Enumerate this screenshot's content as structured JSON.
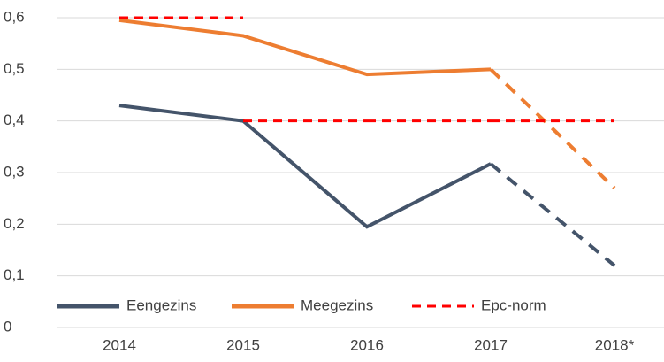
{
  "chart_data": {
    "type": "line",
    "categories": [
      "2014",
      "2015",
      "2016",
      "2017",
      "2018*"
    ],
    "series": [
      {
        "name": "Eengezins",
        "color": "#44546a",
        "values": [
          0.43,
          0.4,
          0.195,
          0.317,
          0.12
        ],
        "dashed_from": "2017"
      },
      {
        "name": "Meegezins",
        "color": "#ed7d31",
        "values": [
          0.595,
          0.565,
          0.49,
          0.5,
          0.27
        ],
        "dashed_from": "2017"
      },
      {
        "name": "Epc-norm",
        "color": "#ff0000",
        "values": [
          0.6,
          0.4,
          0.4,
          0.4,
          0.4
        ],
        "step": "post",
        "dashed": true
      }
    ],
    "ylim": [
      0,
      0.6
    ],
    "yticks": [
      0,
      {
        "value": 0.1,
        "label": "0,1"
      },
      {
        "value": 0.2,
        "label": "0,2"
      },
      {
        "value": 0.3,
        "label": "0,3"
      },
      {
        "value": 0.4,
        "label": "0,4"
      },
      {
        "value": 0.5,
        "label": "0,5"
      },
      {
        "value": 0.6,
        "label": "0,6"
      }
    ],
    "grid": true,
    "legend": "lower left"
  }
}
